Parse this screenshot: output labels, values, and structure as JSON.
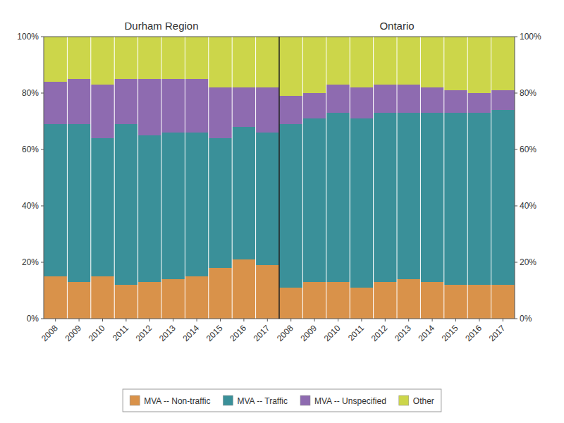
{
  "chart_data": [
    {
      "type": "bar",
      "stacked": true,
      "grid": false,
      "legend": "bottom",
      "title": "Durham Region",
      "categories": [
        "2008",
        "2009",
        "2010",
        "2011",
        "2012",
        "2013",
        "2014",
        "2015",
        "2016",
        "2017"
      ],
      "series": [
        {
          "name": "MVA -- Non-traffic",
          "color": "#d9924a",
          "values": [
            15,
            13,
            15,
            12,
            13,
            14,
            15,
            18,
            21,
            19
          ]
        },
        {
          "name": "MVA -- Traffic",
          "color": "#3a9099",
          "values": [
            54,
            56,
            49,
            57,
            52,
            52,
            51,
            46,
            47,
            47
          ]
        },
        {
          "name": "MVA -- Unspecified",
          "color": "#8e6bb0",
          "values": [
            15,
            16,
            19,
            16,
            20,
            19,
            19,
            18,
            14,
            16
          ]
        },
        {
          "name": "Other",
          "color": "#ccd64a",
          "values": [
            16,
            15,
            17,
            15,
            15,
            15,
            15,
            18,
            18,
            18
          ]
        }
      ],
      "ylim": [
        0,
        100
      ],
      "yticks": [
        {
          "value": 0,
          "label": "0%"
        },
        {
          "value": 20,
          "label": "20%"
        },
        {
          "value": 40,
          "label": "40%"
        },
        {
          "value": 60,
          "label": "60%"
        },
        {
          "value": 80,
          "label": "80%"
        },
        {
          "value": 100,
          "label": "100%"
        }
      ]
    },
    {
      "type": "bar",
      "stacked": true,
      "grid": false,
      "title": "Ontario",
      "categories": [
        "2008",
        "2009",
        "2010",
        "2011",
        "2012",
        "2013",
        "2014",
        "2015",
        "2016",
        "2017"
      ],
      "series": [
        {
          "name": "MVA -- Non-traffic",
          "color": "#d9924a",
          "values": [
            11,
            13,
            13,
            11,
            13,
            14,
            13,
            12,
            12,
            12
          ]
        },
        {
          "name": "MVA -- Traffic",
          "color": "#3a9099",
          "values": [
            58,
            58,
            60,
            60,
            60,
            59,
            60,
            61,
            61,
            62
          ]
        },
        {
          "name": "MVA -- Unspecified",
          "color": "#8e6bb0",
          "values": [
            10,
            9,
            10,
            11,
            10,
            10,
            9,
            8,
            7,
            7
          ]
        },
        {
          "name": "Other",
          "color": "#ccd64a",
          "values": [
            21,
            20,
            17,
            18,
            17,
            17,
            18,
            19,
            20,
            19
          ]
        }
      ],
      "ylim": [
        0,
        100
      ],
      "yticks": [
        {
          "value": 0,
          "label": "0%"
        },
        {
          "value": 20,
          "label": "20%"
        },
        {
          "value": 40,
          "label": "40%"
        },
        {
          "value": 60,
          "label": "60%"
        },
        {
          "value": 80,
          "label": "80%"
        },
        {
          "value": 100,
          "label": "100%"
        }
      ]
    }
  ]
}
